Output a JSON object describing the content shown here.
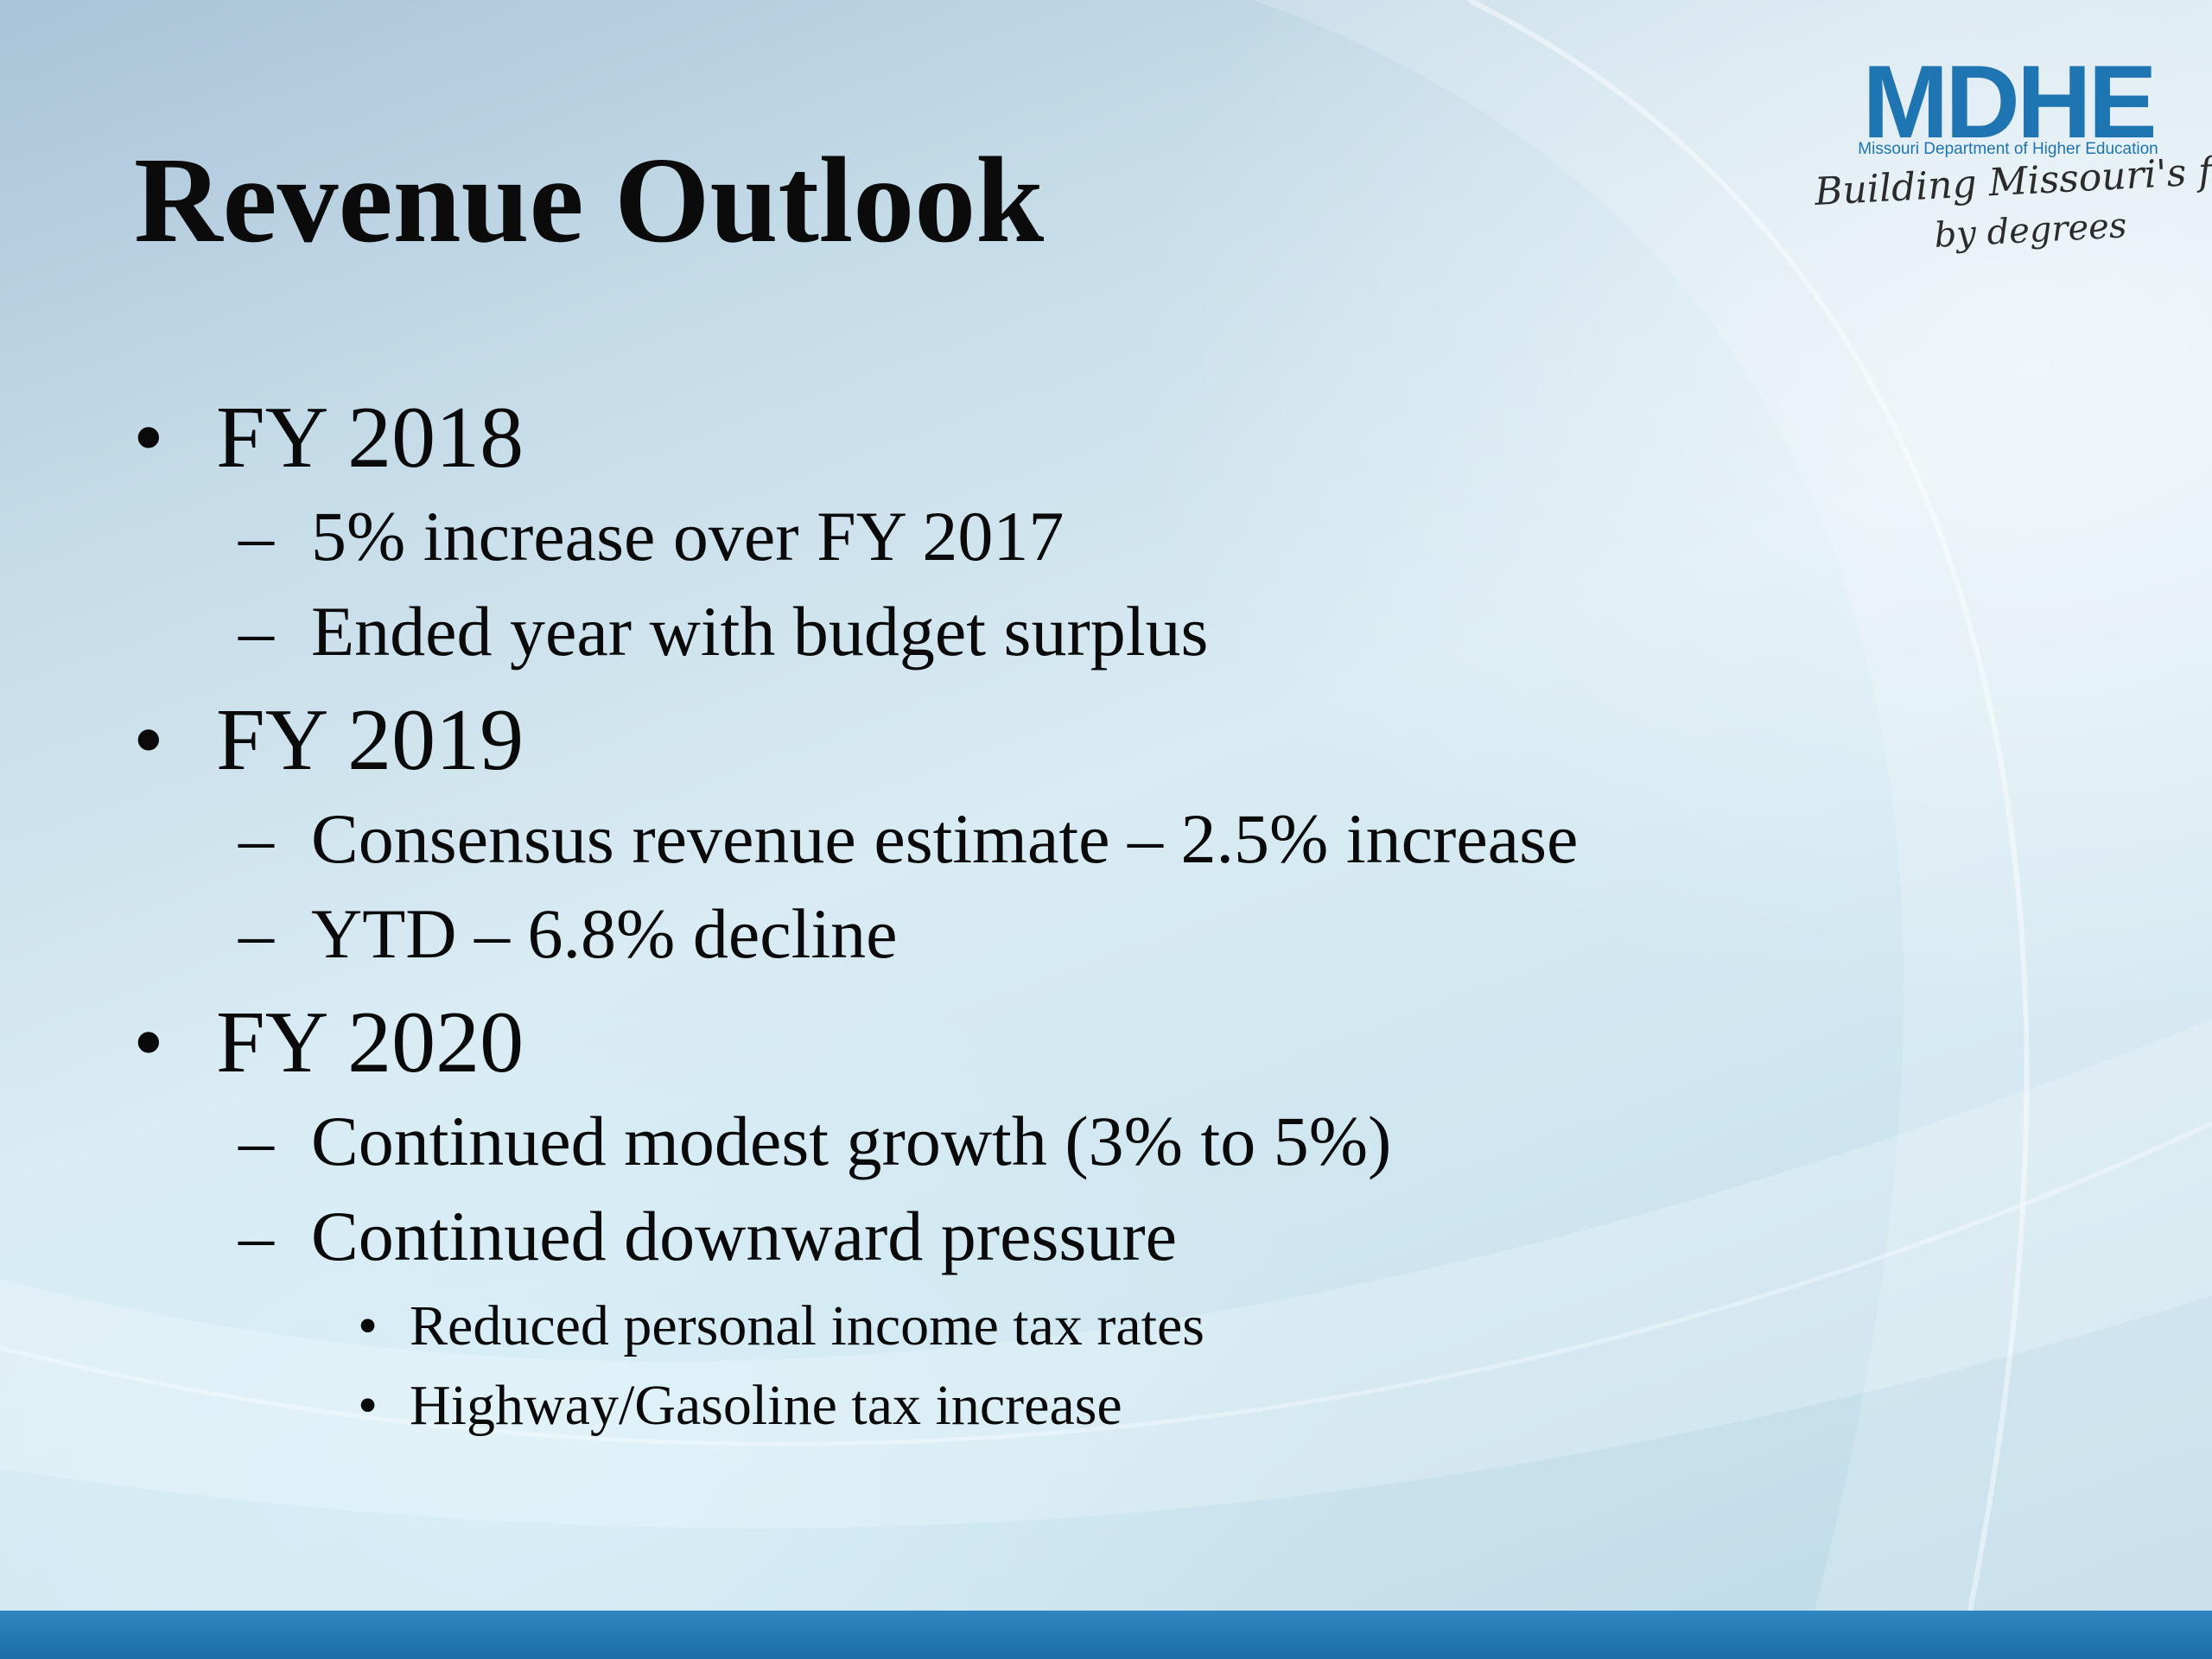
{
  "slide": {
    "title": "Revenue Outlook",
    "logo": {
      "wordmark": "MDHE",
      "subtitle": "Missouri Department of Higher Education",
      "tagline_line1": "Building Missouri's future...",
      "tagline_line2": "by degrees"
    },
    "bullets": [
      {
        "label": "FY 2018",
        "items": [
          {
            "text": "5% increase over FY 2017"
          },
          {
            "text": "Ended year with budget surplus"
          }
        ]
      },
      {
        "label": "FY 2019",
        "items": [
          {
            "text": "Consensus revenue estimate – 2.5% increase"
          },
          {
            "text": "YTD – 6.8% decline"
          }
        ]
      },
      {
        "label": "FY 2020",
        "items": [
          {
            "text": "Continued modest growth (3% to 5%)"
          },
          {
            "text": "Continued downward pressure",
            "items": [
              {
                "text": "Reduced personal income tax rates"
              },
              {
                "text": "Highway/Gasoline tax increase"
              }
            ]
          }
        ]
      }
    ],
    "markers": {
      "level1": "•",
      "level2": "–",
      "level3": "•"
    },
    "colors": {
      "brand_blue": "#1f74b2",
      "bottom_bar": "#1d6ea9"
    }
  }
}
